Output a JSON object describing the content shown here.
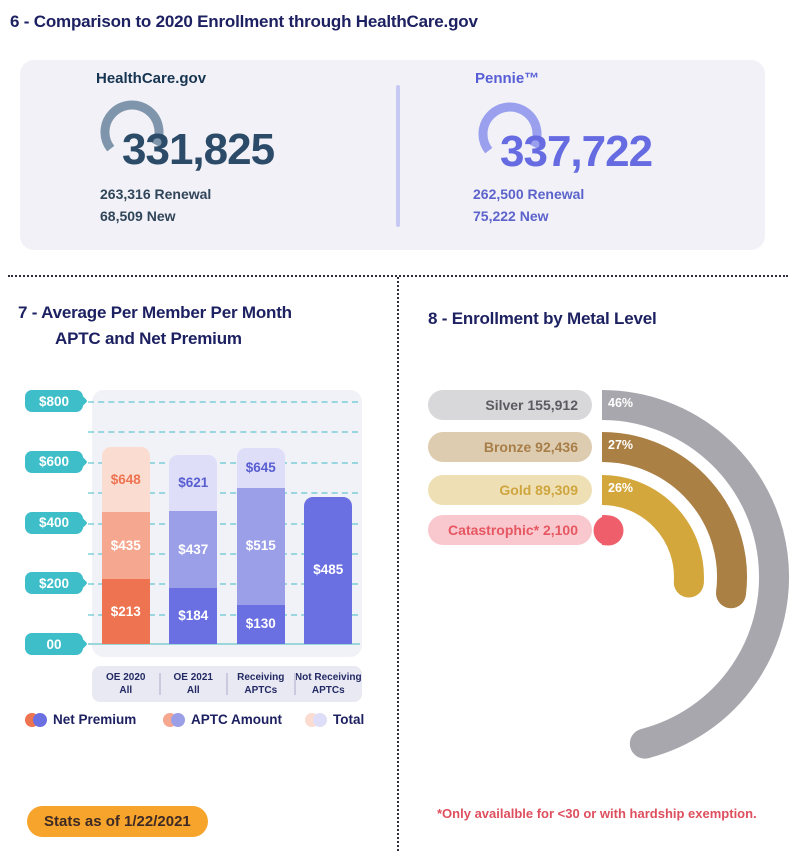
{
  "page": {
    "title": "6 - Comparison to 2020 Enrollment through HealthCare.gov",
    "stats_badge": "Stats as of 1/22/2021"
  },
  "comparison": {
    "healthcaregov": {
      "label": "HealthCare.gov",
      "total": "331,825",
      "renewal": "263,316 Renewal",
      "new_line": "68,509 New",
      "accent_color": "#7e95ab",
      "number_color": "#2c4b68"
    },
    "pennie": {
      "label": "Pennie™",
      "total": "337,722",
      "renewal": "262,500 Renewal",
      "new_line": "75,222 New",
      "accent_color": "#9aa0ee",
      "number_color": "#666be2"
    }
  },
  "sections": {
    "premium": {
      "title_line1": "7 - Average Per Member Per Month",
      "title_line2": "APTC and Net Premium"
    },
    "metal": {
      "title": "8 - Enrollment by Metal Level"
    }
  },
  "colors": {
    "navy": "#1d2161",
    "teal": "#3ebec8",
    "card_bg": "#f1f1f7",
    "badge_orange": "#f6a42b",
    "footnote_red": "#de4f5e"
  },
  "chart_data": [
    {
      "type": "bar",
      "title": "7 - Average Per Member Per Month APTC and Net Premium",
      "ylim": [
        0,
        800
      ],
      "grid": true,
      "legend_position": "bottom",
      "yticks": [
        {
          "label": "$800",
          "value": 800
        },
        {
          "label": "$600",
          "value": 600
        },
        {
          "label": "$400",
          "value": 400
        },
        {
          "label": "$200",
          "value": 200
        },
        {
          "label": "00",
          "value": 0
        }
      ],
      "bars": [
        {
          "category": "OE 2020",
          "category_line2": "All",
          "segments": [
            {
              "series": "Total",
              "label": "$648",
              "value": 648,
              "color": "#fbdcd0",
              "label_color": "#ee7351"
            },
            {
              "series": "APTC Amount",
              "label": "$435",
              "value": 435,
              "color": "#f5a78f",
              "label_color": "#ffffff"
            },
            {
              "series": "Net Premium",
              "label": "$213",
              "value": 213,
              "color": "#ee7351",
              "label_color": "#ffffff"
            }
          ]
        },
        {
          "category": "OE 2021",
          "category_line2": "All",
          "segments": [
            {
              "series": "Total",
              "label": "$621",
              "value": 621,
              "color": "#dedef8",
              "label_color": "#585ed1"
            },
            {
              "series": "APTC Amount",
              "label": "$437",
              "value": 437,
              "color": "#9b9fe8",
              "label_color": "#ffffff"
            },
            {
              "series": "Net Premium",
              "label": "$184",
              "value": 184,
              "color": "#6a6fe2",
              "label_color": "#ffffff"
            }
          ]
        },
        {
          "category": "Receiving",
          "category_line2": "APTCs",
          "segments": [
            {
              "series": "Total",
              "label": "$645",
              "value": 645,
              "color": "#dedef8",
              "label_color": "#585ed1"
            },
            {
              "series": "APTC Amount",
              "label": "$515",
              "value": 515,
              "color": "#9b9fe8",
              "label_color": "#ffffff"
            },
            {
              "series": "Net Premium",
              "label": "$130",
              "value": 130,
              "color": "#6a6fe2",
              "label_color": "#ffffff"
            }
          ]
        },
        {
          "category": "Not Receiving",
          "category_line2": "APTCs",
          "segments": [
            {
              "series": "Net Premium",
              "label": "$485",
              "value": 485,
              "color": "#6a6fe2",
              "label_color": "#ffffff"
            }
          ]
        }
      ],
      "legend": [
        {
          "label": "Net Premium",
          "colors": [
            "#ee7351",
            "#6a6fe2"
          ]
        },
        {
          "label": "APTC Amount",
          "colors": [
            "#f5a78f",
            "#9b9fe8"
          ]
        },
        {
          "label": "Total",
          "colors": [
            "#fbdcd0",
            "#dedef8"
          ]
        }
      ]
    },
    {
      "type": "radial_bar",
      "title": "8 - Enrollment by Metal Level",
      "categories": [
        "Silver",
        "Bronze",
        "Gold",
        "Catastrophic"
      ],
      "values": [
        155912,
        92436,
        89309,
        2100
      ],
      "labels": [
        "Silver 155,912",
        "Bronze 92,436",
        "Gold 89,309",
        "Catastrophic* 2,100"
      ],
      "percents": [
        "46%",
        "27%",
        "26%",
        null
      ],
      "sweep_degrees": [
        165.6,
        97.2,
        93.6,
        8
      ],
      "pill_colors": [
        "#d8d8db",
        "#ddccb0",
        "#eedfb4",
        "#f9c8ce"
      ],
      "text_colors": [
        "#5a5a60",
        "#a87e48",
        "#cfa53e",
        "#e65762"
      ],
      "arc_colors": [
        "#a8a7ad",
        "#ab8045",
        "#d3a73b",
        "#ee5f6b"
      ],
      "footnote": "*Only availalble for <30 or with hardship exemption."
    }
  ]
}
